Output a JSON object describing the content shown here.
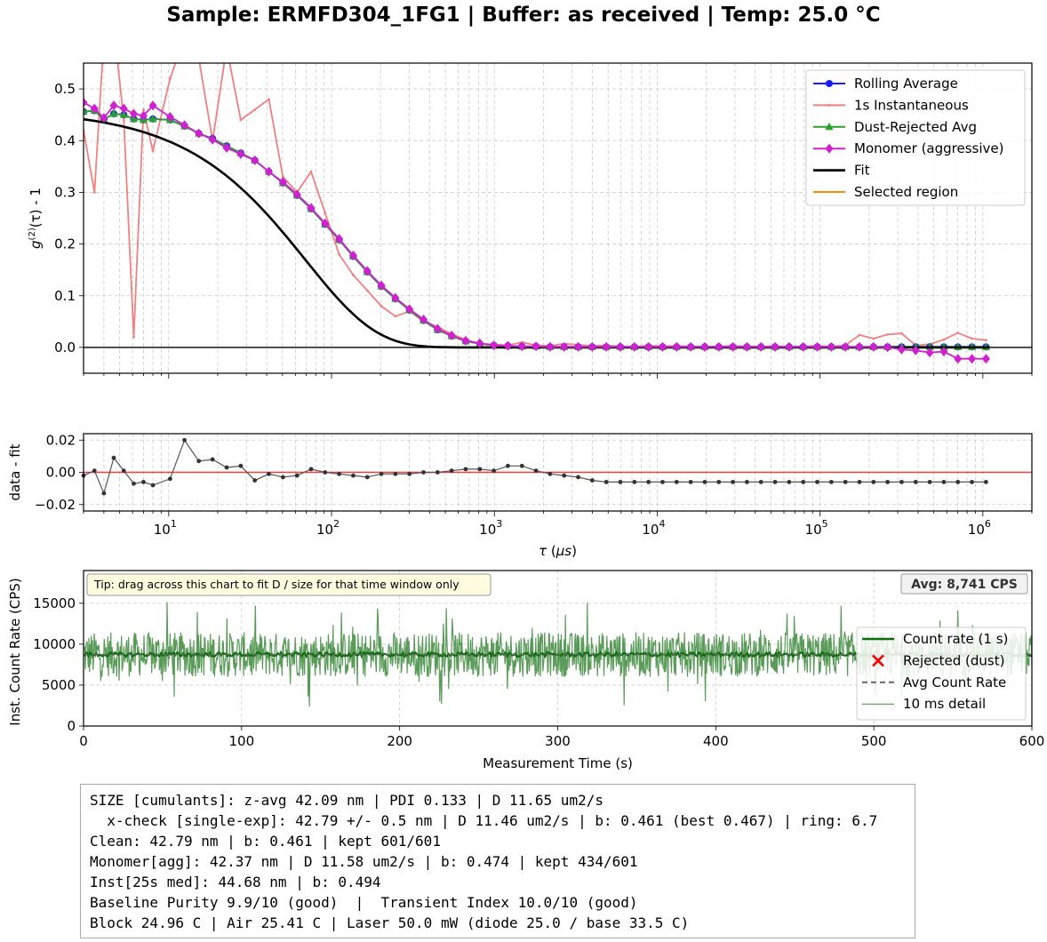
{
  "title": "Sample: ERMFD304_1FG1 | Buffer: as received | Temp: 25.0 °C",
  "colors": {
    "rolling": "#1a1aff",
    "instant": "#f28080",
    "dust": "#2ca02c",
    "monomer": "#d020d0",
    "fit": "#000000",
    "selected": "#ff8c00",
    "residual_line": "#e84040",
    "residual_pts": "#333333",
    "count_fill": "#3d8a3d",
    "count_line": "#0b6e0b",
    "rejected": "#ff0000"
  },
  "chart_data": [
    {
      "type": "line",
      "x_scale": "log",
      "xlim": [
        3,
        2000000
      ],
      "ylim": [
        -0.05,
        0.55
      ],
      "ylabel": "g(2)(τ) - 1",
      "y_ticks": [
        "0.0",
        "0.1",
        "0.2",
        "0.3",
        "0.4",
        "0.5"
      ],
      "legend": [
        "Rolling Average",
        "1s Instantaneous",
        "Dust-Rejected Avg",
        "Monomer (aggressive)",
        "Fit",
        "Selected region"
      ],
      "legend_position": "top-right",
      "grid": true,
      "tau_us": [
        3.0,
        3.5,
        4.0,
        4.6,
        5.3,
        6.1,
        7.0,
        8.0,
        10.2,
        12.5,
        15.3,
        18.6,
        22.7,
        27.7,
        33.8,
        41.2,
        50.3,
        61.4,
        74.9,
        91.3,
        111.4,
        135.9,
        165.8,
        202.2,
        246.7,
        301.0,
        367.2,
        448.0,
        546.5,
        666.7,
        813.4,
        992.4,
        1210.7,
        1477.1,
        1802.0,
        2198.4,
        2682.1,
        3272.2,
        3992.2,
        4870.5,
        5942.0,
        7249.4,
        8844.3,
        10790.2,
        13164.0,
        16060.2,
        19593.4,
        23904.0,
        29163.0,
        35579.0,
        43406.0,
        52955.0,
        64605.0,
        78819.0,
        96160.0,
        117315.0,
        143125.0,
        174613.0,
        213029.0,
        259895.0,
        317073.0,
        386829.0,
        471930.0,
        575754.0,
        702420.0,
        856952.0,
        1045480.0
      ],
      "series": [
        {
          "name": "Rolling Average",
          "values": [
            0.456,
            0.458,
            0.441,
            0.452,
            0.45,
            0.442,
            0.44,
            0.442,
            0.44,
            0.428,
            0.414,
            0.404,
            0.39,
            0.376,
            0.362,
            0.34,
            0.318,
            0.294,
            0.268,
            0.238,
            0.208,
            0.176,
            0.146,
            0.118,
            0.094,
            0.072,
            0.052,
            0.034,
            0.022,
            0.012,
            0.007,
            0.004,
            0.003,
            0.002,
            0.002,
            0.001,
            0.001,
            0.001,
            0.001,
            0.001,
            0.001,
            0.001,
            0.001,
            0.001,
            0.001,
            0.001,
            0.001,
            0.001,
            0.001,
            0.001,
            0.001,
            0.001,
            0.001,
            0.001,
            0.001,
            0.001,
            0.001,
            0.001,
            0.001,
            0.001,
            0.001,
            0.001,
            0.001,
            0.001,
            0.001,
            0.001,
            0.001
          ]
        },
        {
          "name": "1s Instantaneous",
          "values": [
            0.42,
            0.3,
            0.6,
            0.62,
            0.44,
            0.02,
            0.46,
            0.38,
            0.52,
            0.6,
            0.56,
            0.4,
            0.58,
            0.44,
            0.46,
            0.48,
            0.33,
            0.3,
            0.34,
            0.26,
            0.18,
            0.14,
            0.11,
            0.08,
            0.06,
            0.07,
            0.05,
            0.04,
            0.026,
            0.015,
            0.007,
            0.006,
            0.004,
            0.01,
            0.004,
            0.003,
            0.007,
            0.005,
            0.003,
            0.004,
            0.002,
            0.001,
            0.004,
            0.002,
            0.003,
            0.002,
            0.001,
            0.002,
            0.003,
            0.002,
            0.001,
            0.003,
            0.001,
            0.002,
            0.003,
            0.002,
            0.004,
            0.024,
            0.017,
            0.025,
            0.027,
            0.004,
            0.006,
            0.015,
            0.028,
            0.017,
            0.014
          ]
        },
        {
          "name": "Dust-Rejected Avg",
          "values": [
            0.456,
            0.458,
            0.441,
            0.452,
            0.45,
            0.442,
            0.44,
            0.442,
            0.44,
            0.428,
            0.414,
            0.404,
            0.39,
            0.376,
            0.362,
            0.34,
            0.318,
            0.294,
            0.268,
            0.238,
            0.208,
            0.176,
            0.146,
            0.118,
            0.094,
            0.072,
            0.052,
            0.034,
            0.022,
            0.012,
            0.007,
            0.004,
            0.003,
            0.002,
            0.002,
            0.001,
            0.001,
            0.001,
            0.001,
            0.001,
            0.001,
            0.001,
            0.001,
            0.001,
            0.001,
            0.001,
            0.001,
            0.001,
            0.001,
            0.001,
            0.001,
            0.001,
            0.001,
            0.001,
            0.001,
            0.001,
            0.001,
            0.001,
            0.001,
            0.001,
            0.001,
            0.001,
            0.001,
            0.001,
            0.001,
            0.001,
            0.001
          ]
        },
        {
          "name": "Monomer (aggressive)",
          "values": [
            0.474,
            0.462,
            0.444,
            0.468,
            0.462,
            0.452,
            0.448,
            0.468,
            0.446,
            0.43,
            0.414,
            0.402,
            0.386,
            0.374,
            0.362,
            0.34,
            0.32,
            0.296,
            0.27,
            0.24,
            0.21,
            0.178,
            0.148,
            0.12,
            0.096,
            0.074,
            0.054,
            0.036,
            0.023,
            0.013,
            0.008,
            0.004,
            0.003,
            0.002,
            0.002,
            0.001,
            0.001,
            0.001,
            0.001,
            0.001,
            0.001,
            0.001,
            0.001,
            0.001,
            0.001,
            0.001,
            0.001,
            0.001,
            0.001,
            0.001,
            0.001,
            0.001,
            0.001,
            0.001,
            0.001,
            0.001,
            0.001,
            0.001,
            0.001,
            0.0,
            -0.004,
            -0.006,
            -0.01,
            -0.008,
            -0.022,
            -0.022,
            -0.022
          ]
        }
      ],
      "fit": {
        "name": "Fit",
        "b": 0.461,
        "tau_c_us": 138.0
      }
    },
    {
      "type": "scatter",
      "x_scale": "log",
      "xlim": [
        3,
        2000000
      ],
      "ylim": [
        -0.024,
        0.024
      ],
      "ylabel": "data - fit",
      "xlabel": "τ (μs)",
      "y_ticks": [
        "0.02",
        "0.00",
        "−0.02"
      ],
      "x_ticks": [
        "10",
        "10",
        "10",
        "10",
        "10",
        "10"
      ],
      "x_tick_exponents": [
        "1",
        "2",
        "3",
        "4",
        "5",
        "6"
      ],
      "grid": true,
      "values": [
        -0.002,
        0.001,
        -0.013,
        0.009,
        0.001,
        -0.007,
        -0.006,
        -0.008,
        -0.004,
        0.02,
        0.007,
        0.008,
        0.003,
        0.004,
        -0.005,
        -0.001,
        -0.003,
        -0.002,
        0.002,
        0.0,
        -0.001,
        -0.002,
        -0.003,
        -0.001,
        -0.001,
        -0.001,
        0.0,
        0.0,
        0.001,
        0.002,
        0.002,
        0.001,
        0.004,
        0.004,
        0.001,
        -0.001,
        -0.002,
        -0.003,
        -0.005,
        -0.006,
        -0.006,
        -0.006,
        -0.006,
        -0.006,
        -0.006,
        -0.006,
        -0.006,
        -0.006,
        -0.006,
        -0.006,
        -0.006,
        -0.006,
        -0.006,
        -0.006,
        -0.006,
        -0.006,
        -0.006,
        -0.006,
        -0.006,
        -0.006,
        -0.006,
        -0.006,
        -0.006,
        -0.006,
        -0.006,
        -0.006,
        -0.006
      ]
    },
    {
      "type": "line",
      "xlabel": "Measurement Time (s)",
      "ylabel": "Inst. Count Rate (CPS)",
      "xlim": [
        0,
        600
      ],
      "ylim": [
        0,
        19000
      ],
      "x_ticks": [
        "0",
        "100",
        "200",
        "300",
        "400",
        "500",
        "600"
      ],
      "y_ticks": [
        "0",
        "5000",
        "10000",
        "15000"
      ],
      "grid": true,
      "mean_cps": 8741,
      "band_low_cps": 6300,
      "band_high_cps": 11500,
      "legend": [
        "Count rate (1 s)",
        "Rejected (dust)",
        "Avg Count Rate",
        "10 ms detail"
      ],
      "legend_position": "center-right",
      "tip": "Tip: drag across this chart to fit D / size for that time window only",
      "avg_badge": "Avg: 8,741 CPS"
    }
  ],
  "summary": [
    "SIZE [cumulants]: z-avg 42.09 nm | PDI 0.133 | D 11.65 um2/s",
    "  x-check [single-exp]: 42.79 +/- 0.5 nm | D 11.46 um2/s | b: 0.461 (best 0.467) | ring: 6.7",
    "Clean: 42.79 nm | b: 0.461 | kept 601/601",
    "Monomer[agg]: 42.37 nm | D 11.58 um2/s | b: 0.474 | kept 434/601",
    "Inst[25s med]: 44.68 nm | b: 0.494",
    "Baseline Purity 9.9/10 (good)  |  Transient Index 10.0/10 (good)",
    "Block 24.96 C | Air 25.41 C | Laser 50.0 mW (diode 25.0 / base 33.5 C)"
  ]
}
